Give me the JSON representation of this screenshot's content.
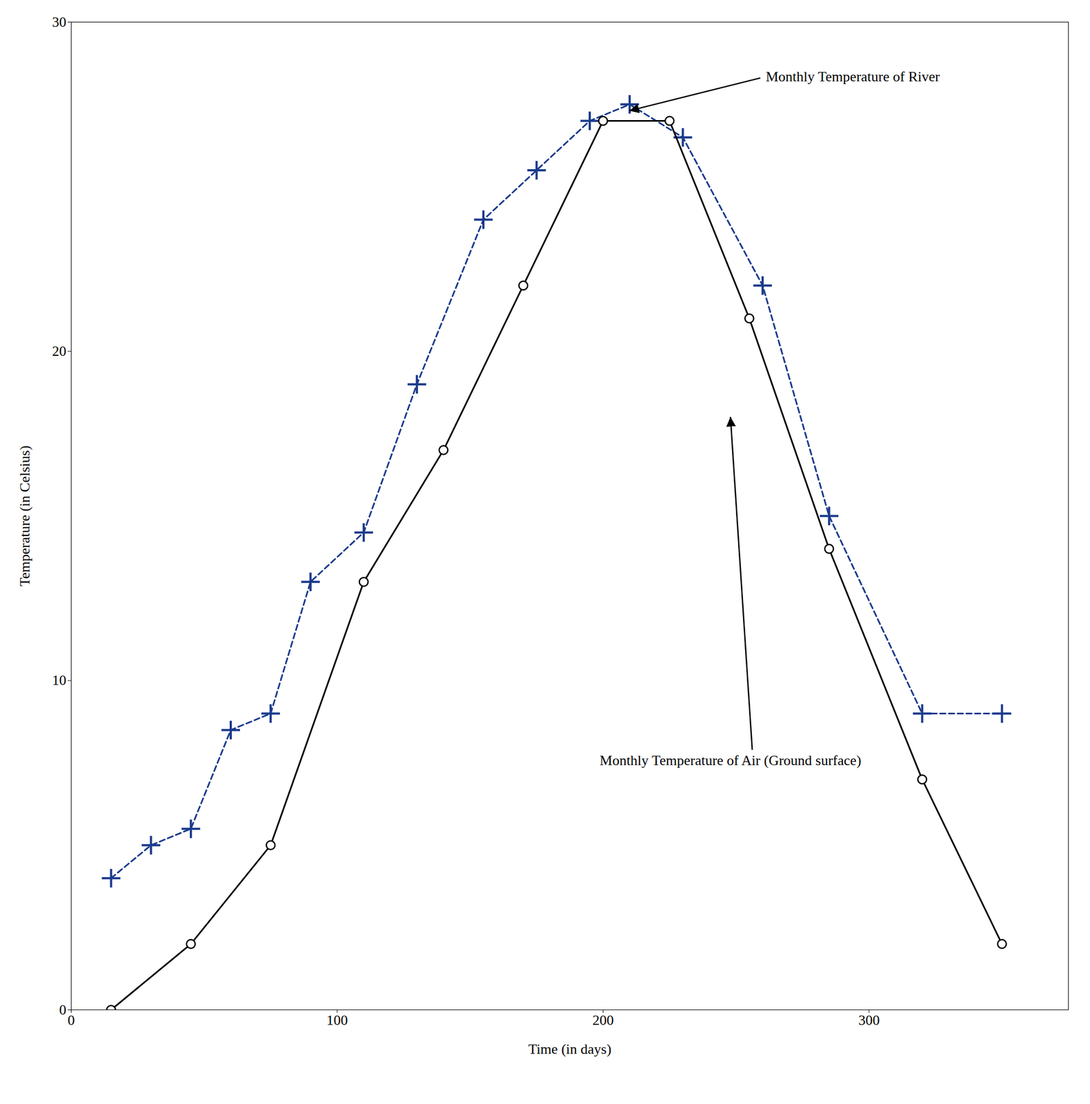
{
  "chart_data": {
    "type": "line",
    "xlabel": "Time (in days)",
    "ylabel": "Temperature (in Celsius)",
    "xlim": [
      0,
      375
    ],
    "ylim": [
      0,
      30
    ],
    "xticks": [
      0,
      100,
      200,
      300
    ],
    "yticks": [
      0,
      10,
      20,
      30
    ],
    "grid": false,
    "series": [
      {
        "color": "#000000",
        "marker": "circle",
        "line_style": "solid",
        "x": [
          15,
          45,
          75,
          110,
          140,
          170,
          200,
          225,
          255,
          285,
          320,
          350
        ],
        "values": [
          0,
          2,
          5,
          13,
          17,
          22,
          27,
          27,
          21,
          14,
          7,
          2
        ]
      },
      {
        "color": "#1a3a8c",
        "marker": "plus",
        "line_style": "dashed",
        "x": [
          15,
          30,
          45,
          60,
          75,
          90,
          110,
          130,
          155,
          175,
          195,
          210,
          230,
          260,
          285,
          320,
          350
        ],
        "values": [
          4,
          5,
          5.5,
          8.5,
          9,
          13,
          14.5,
          19,
          24,
          25.5,
          27,
          27.5,
          26.5,
          22,
          15,
          9,
          9
        ]
      }
    ],
    "annotations": [
      {
        "text": "Monthly Temperature of River",
        "x": 210,
        "y": 27.3
      },
      {
        "text": "Monthly Temperature of Air (Ground surface)",
        "x": 248,
        "y": 18
      }
    ]
  }
}
